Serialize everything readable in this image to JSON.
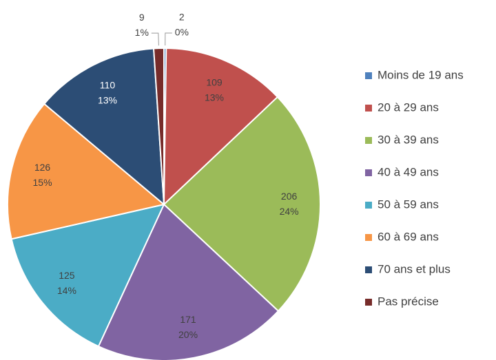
{
  "chart_data": {
    "type": "pie",
    "categories": [
      "Moins de 19 ans",
      "20 à 29 ans",
      "30 à 39 ans",
      "40 à 49 ans",
      "50 à 59 ans",
      "60 à 69 ans",
      "70 ans et plus",
      "Pas précise"
    ],
    "values": [
      2,
      109,
      206,
      171,
      125,
      126,
      110,
      9
    ],
    "percent_labels": [
      "0%",
      "13%",
      "24%",
      "20%",
      "14%",
      "15%",
      "13%",
      "1%"
    ],
    "colors": [
      "#4f81bd",
      "#c0504d",
      "#9bbb59",
      "#8064a2",
      "#4bacc6",
      "#f79646",
      "#2c4d75",
      "#772c2a"
    ],
    "legend": "right"
  }
}
